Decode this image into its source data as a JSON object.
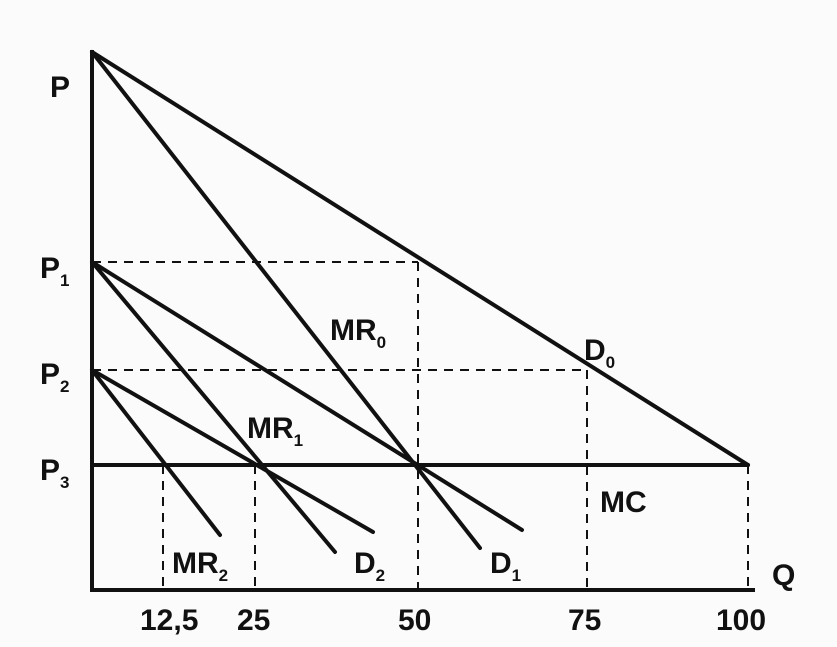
{
  "labels": {
    "price_axis": "P",
    "quantity_axis": "Q",
    "p1": {
      "main": "P",
      "sub": "1"
    },
    "p2": {
      "main": "P",
      "sub": "2"
    },
    "p3": {
      "main": "P",
      "sub": "3"
    },
    "mr0": {
      "main": "MR",
      "sub": "0"
    },
    "mr1": {
      "main": "MR",
      "sub": "1"
    },
    "mr2": {
      "main": "MR",
      "sub": "2"
    },
    "d0": {
      "main": "D",
      "sub": "0"
    },
    "d1": {
      "main": "D",
      "sub": "1"
    },
    "d2": {
      "main": "D",
      "sub": "2"
    },
    "mc": "MC"
  },
  "x_ticks": [
    "12,5",
    "25",
    "50",
    "75",
    "100"
  ],
  "colors": {
    "ink": "#111111",
    "background": "#fbfbfb"
  }
}
